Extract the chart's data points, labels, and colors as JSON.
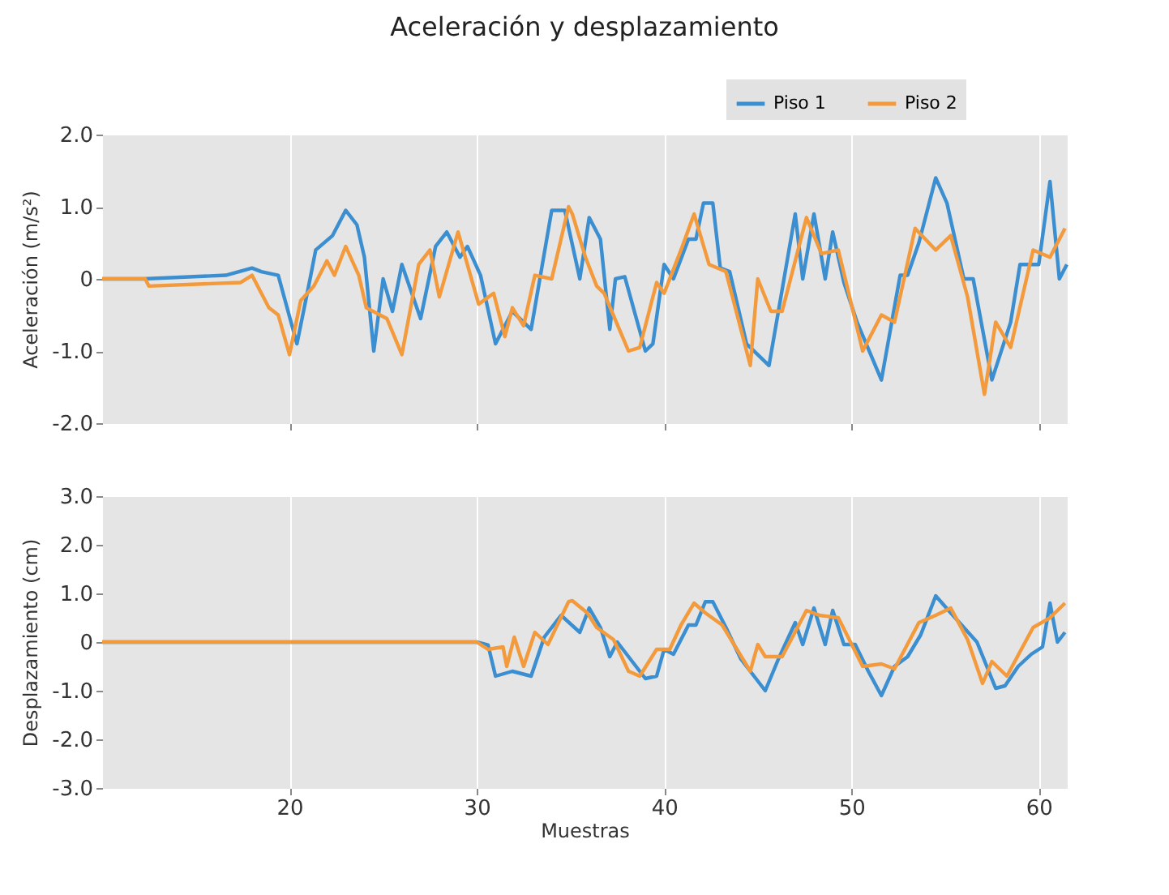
{
  "chart_data": [
    {
      "type": "line",
      "title": "Aceleración y desplazamiento",
      "ylabel": "Aceleración (m/s²)",
      "xlim": [
        10,
        61.5
      ],
      "xticks": [
        20,
        30,
        40,
        50,
        60
      ],
      "ylim": [
        -2,
        2
      ],
      "yticks": [
        {
          "value": -2,
          "label": "-2.0"
        },
        {
          "value": -1,
          "label": "-1.0"
        },
        0,
        {
          "value": 1,
          "label": "1.0"
        },
        {
          "value": 2,
          "label": "2.0"
        }
      ],
      "tick_labels": "y",
      "grid": "x",
      "legend": "top right",
      "line_style": "solid",
      "series": [
        {
          "name": "Piso 1",
          "color": "#3b8ed0",
          "x": [
            10,
            12.2,
            16.6,
            18.0,
            18.5,
            19.4,
            20.4,
            21.1,
            21.4,
            22.3,
            23.0,
            23.6,
            24.0,
            24.5,
            25.0,
            25.5,
            26.0,
            27.0,
            27.8,
            28.4,
            29.1,
            29.5,
            30.2,
            31.0,
            31.9,
            32.9,
            34.0,
            34.7,
            35.5,
            36.0,
            36.6,
            37.1,
            37.4,
            37.9,
            39.0,
            39.4,
            40.0,
            40.5,
            41.3,
            41.7,
            42.1,
            42.6,
            43.0,
            43.5,
            44.4,
            45.6,
            46.1,
            47.0,
            47.4,
            48.0,
            48.6,
            49.0,
            49.6,
            50.3,
            51.6,
            52.6,
            53.0,
            53.6,
            54.5,
            55.1,
            56.0,
            56.5,
            57.5,
            58.5,
            59.0,
            60.0,
            60.6,
            61.1,
            61.5
          ],
          "values": [
            0,
            0,
            0.05,
            0.15,
            0.1,
            0.05,
            -0.9,
            0,
            0.4,
            0.6,
            0.95,
            0.75,
            0.3,
            -1.0,
            0,
            -0.45,
            0.2,
            -0.55,
            0.45,
            0.65,
            0.3,
            0.45,
            0.05,
            -0.9,
            -0.45,
            -0.7,
            0.95,
            0.95,
            0.0,
            0.85,
            0.55,
            -0.7,
            0,
            0.03,
            -1.0,
            -0.9,
            0.2,
            0,
            0.55,
            0.55,
            1.05,
            1.05,
            0.15,
            0.1,
            -0.9,
            -1.2,
            -0.45,
            0.9,
            0,
            0.9,
            0,
            0.65,
            -0.05,
            -0.6,
            -1.4,
            0.05,
            0.05,
            0.5,
            1.4,
            1.05,
            0,
            0,
            -1.4,
            -0.6,
            0.2,
            0.2,
            1.35,
            0,
            0.2
          ]
        },
        {
          "name": "Piso 2",
          "color": "#f39a3c",
          "x": [
            10,
            12.3,
            12.5,
            17.4,
            18.0,
            18.9,
            19.4,
            20.0,
            20.6,
            21.3,
            22.0,
            22.4,
            23.0,
            23.7,
            24.1,
            25.2,
            26.0,
            26.9,
            27.5,
            28.0,
            29.0,
            30.1,
            30.9,
            31.5,
            31.9,
            32.5,
            33.1,
            34.0,
            34.9,
            35.1,
            35.8,
            36.4,
            36.8,
            38.1,
            38.7,
            39.6,
            40.0,
            40.9,
            41.6,
            42.4,
            43.3,
            44.6,
            45.0,
            45.7,
            46.3,
            47.6,
            48.4,
            49.3,
            50.6,
            51.6,
            52.3,
            53.4,
            54.5,
            55.3,
            56.2,
            57.1,
            57.7,
            58.5,
            59.7,
            60.6,
            61.4
          ],
          "values": [
            0,
            0,
            -0.1,
            -0.05,
            0.05,
            -0.4,
            -0.5,
            -1.05,
            -0.3,
            -0.1,
            0.25,
            0.05,
            0.45,
            0.05,
            -0.4,
            -0.55,
            -1.05,
            0.2,
            0.4,
            -0.25,
            0.65,
            -0.35,
            -0.2,
            -0.8,
            -0.4,
            -0.65,
            0.05,
            0,
            1.0,
            0.9,
            0.3,
            -0.1,
            -0.2,
            -1.0,
            -0.95,
            -0.05,
            -0.2,
            0.4,
            0.9,
            0.2,
            0.1,
            -1.2,
            0,
            -0.45,
            -0.45,
            0.85,
            0.35,
            0.4,
            -1.0,
            -0.5,
            -0.6,
            0.7,
            0.4,
            0.6,
            -0.25,
            -1.6,
            -0.6,
            -0.95,
            0.4,
            0.3,
            0.7
          ]
        }
      ]
    },
    {
      "type": "line",
      "xlabel": "Muestras",
      "ylabel": "Desplazamiento (cm)",
      "xlim": [
        10,
        61.5
      ],
      "xticks": [
        20,
        30,
        40,
        50,
        60
      ],
      "ylim": [
        -3,
        3
      ],
      "yticks": [
        {
          "value": -3,
          "label": "-3.0"
        },
        {
          "value": -2,
          "label": "-2.0"
        },
        {
          "value": -1,
          "label": "-1.0"
        },
        0,
        {
          "value": 1,
          "label": "1.0"
        },
        {
          "value": 2,
          "label": "2.0"
        },
        {
          "value": 3,
          "label": "3.0"
        }
      ],
      "grid": "x",
      "line_style": "solid",
      "series": [
        {
          "color": "#3b8ed0",
          "x": [
            10,
            30.0,
            30.6,
            31.0,
            31.9,
            32.9,
            33.6,
            34.5,
            35.5,
            36.0,
            36.6,
            37.1,
            37.5,
            39.0,
            39.6,
            40.0,
            40.5,
            41.3,
            41.7,
            42.2,
            42.6,
            43.3,
            44.1,
            45.4,
            46.1,
            47.0,
            47.4,
            48.0,
            48.6,
            49.0,
            49.6,
            50.2,
            50.9,
            51.6,
            52.3,
            53.0,
            53.7,
            54.5,
            55.3,
            56.0,
            56.7,
            57.7,
            58.2,
            58.9,
            59.6,
            60.2,
            60.6,
            61.0,
            61.4
          ],
          "values": [
            0,
            0,
            -0.06,
            -0.7,
            -0.6,
            -0.7,
            0.1,
            0.55,
            0.2,
            0.7,
            0.3,
            -0.3,
            0,
            -0.75,
            -0.7,
            -0.15,
            -0.25,
            0.35,
            0.35,
            0.83,
            0.83,
            0.3,
            -0.35,
            -1.0,
            -0.35,
            0.4,
            -0.05,
            0.7,
            -0.05,
            0.65,
            -0.05,
            -0.05,
            -0.6,
            -1.1,
            -0.5,
            -0.3,
            0.15,
            0.95,
            0.6,
            0.3,
            0,
            -0.95,
            -0.9,
            -0.5,
            -0.25,
            -0.1,
            0.8,
            0,
            0.2
          ]
        },
        {
          "color": "#f39a3c",
          "x": [
            10,
            30.0,
            30.6,
            31.4,
            31.6,
            32.0,
            32.5,
            33.1,
            33.8,
            34.9,
            35.1,
            35.9,
            36.4,
            37.3,
            38.1,
            38.7,
            39.6,
            40.3,
            40.9,
            41.6,
            42.2,
            43.1,
            44.6,
            45.0,
            45.4,
            46.3,
            47.6,
            48.3,
            49.3,
            50.6,
            51.6,
            52.3,
            53.6,
            54.5,
            55.3,
            56.2,
            57.0,
            57.5,
            58.3,
            59.7,
            60.6,
            61.4
          ],
          "values": [
            0,
            0,
            -0.15,
            -0.1,
            -0.5,
            0.1,
            -0.5,
            0.2,
            -0.05,
            0.83,
            0.85,
            0.6,
            0.3,
            0.05,
            -0.6,
            -0.7,
            -0.15,
            -0.15,
            0.35,
            0.8,
            0.6,
            0.35,
            -0.6,
            -0.05,
            -0.3,
            -0.3,
            0.65,
            0.55,
            0.5,
            -0.5,
            -0.45,
            -0.55,
            0.4,
            0.55,
            0.7,
            0.05,
            -0.85,
            -0.4,
            -0.7,
            0.3,
            0.5,
            0.8
          ]
        }
      ]
    }
  ]
}
